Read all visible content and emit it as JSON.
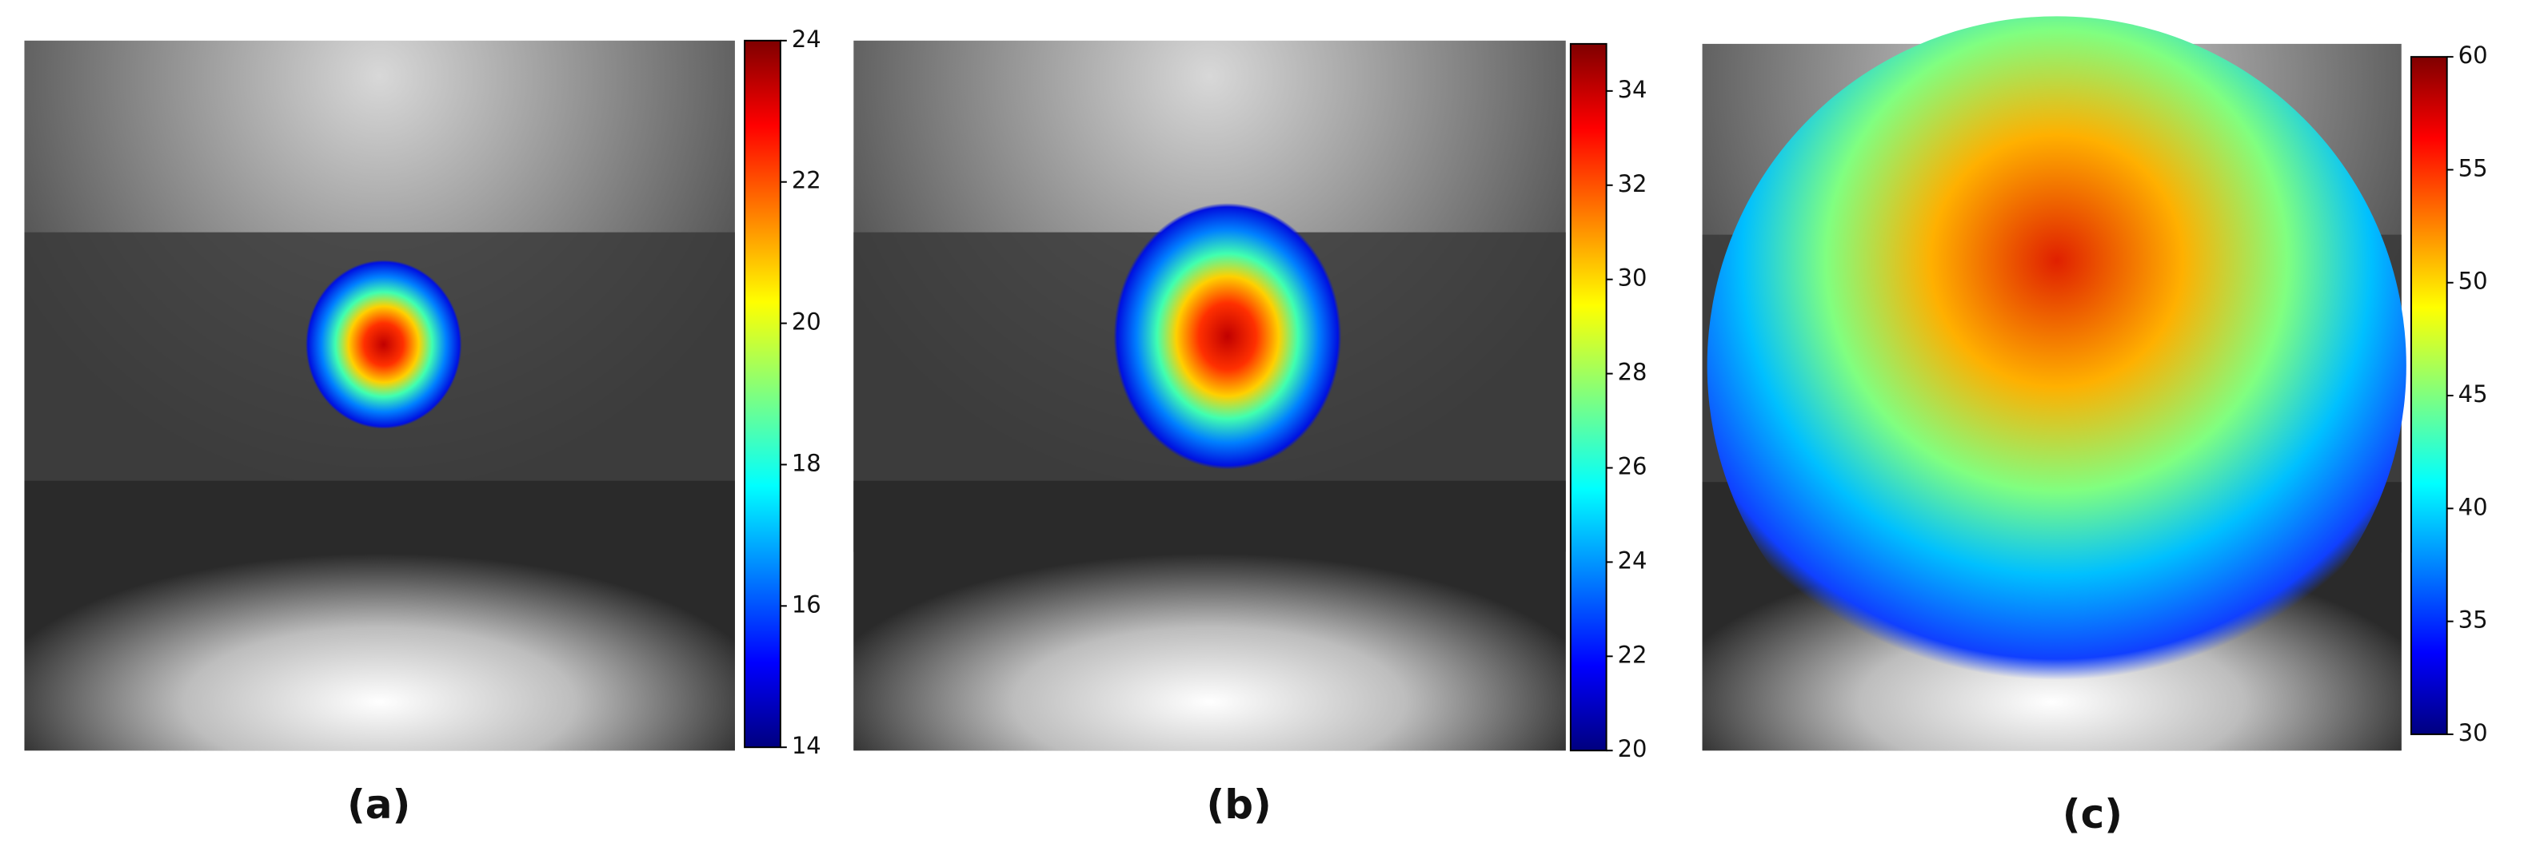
{
  "panels": [
    {
      "label": "(a)",
      "colorbar": {
        "lim": [
          14,
          24
        ],
        "ticks": [
          14,
          16,
          18,
          20,
          22,
          24
        ]
      }
    },
    {
      "label": "(b)",
      "colorbar": {
        "lim": [
          20,
          35
        ],
        "ticks": [
          20,
          22,
          24,
          26,
          28,
          30,
          32,
          34
        ]
      }
    },
    {
      "label": "(c)",
      "colorbar": {
        "lim": [
          30,
          60
        ],
        "ticks": [
          30,
          35,
          40,
          45,
          50,
          55,
          60
        ]
      }
    }
  ]
}
